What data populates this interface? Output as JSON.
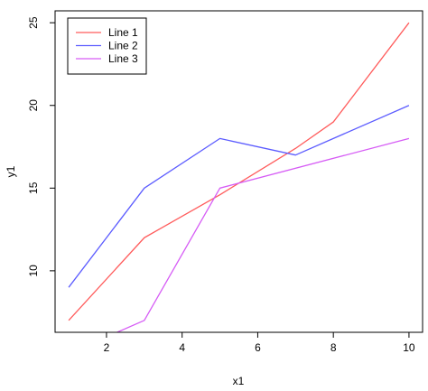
{
  "chart_data": {
    "type": "line",
    "xlabel": "x1",
    "ylabel": "y1",
    "xlim": [
      0.64,
      10.36
    ],
    "ylim": [
      6.28,
      25.72
    ],
    "xticks": [
      2,
      4,
      6,
      8,
      10
    ],
    "yticks": [
      10,
      15,
      20,
      25
    ],
    "grid": false,
    "legend_position": "top-left",
    "series": [
      {
        "name": "Line 1",
        "color": "#ff5c5c",
        "x": [
          1,
          3,
          5,
          7,
          8,
          10
        ],
        "y": [
          7,
          12,
          14.6,
          17.4,
          19,
          25
        ]
      },
      {
        "name": "Line 2",
        "color": "#5c5cff",
        "x": [
          1,
          3,
          5,
          7,
          10
        ],
        "y": [
          9,
          15,
          18,
          17,
          20
        ]
      },
      {
        "name": "Line 3",
        "color": "#d65cf5",
        "x": [
          2,
          3,
          5,
          10
        ],
        "y": [
          6,
          7,
          15,
          18
        ]
      }
    ]
  }
}
